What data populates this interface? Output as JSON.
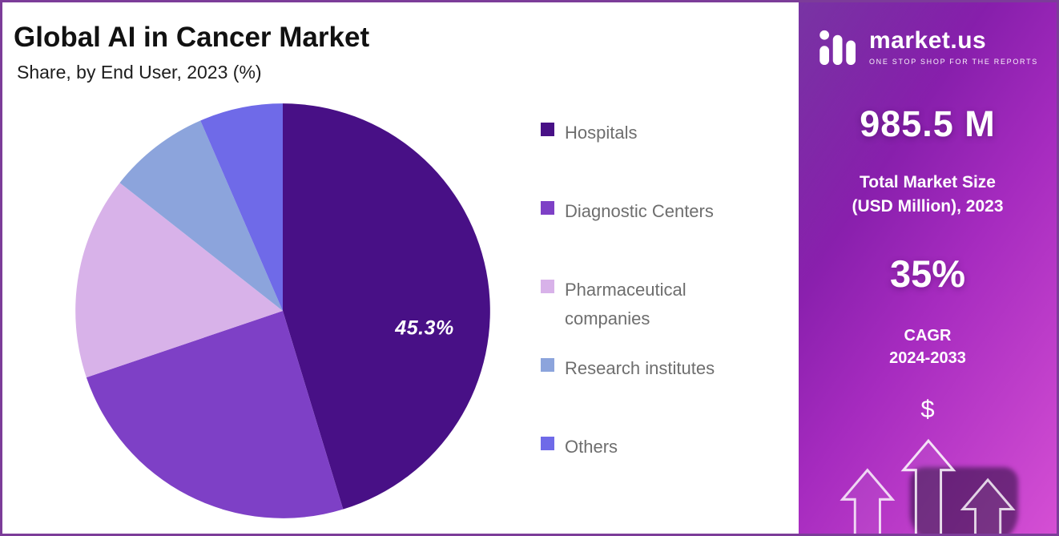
{
  "header": {
    "title": "Global AI in Cancer Market",
    "subtitle": "Share, by End User, 2023 (%)"
  },
  "chart_data": {
    "type": "pie",
    "title": "Global AI in Cancer Market Share, by End User, 2023 (%)",
    "categories": [
      "Hospitals",
      "Diagnostic Centers",
      "Pharmaceutical companies",
      "Research institutes",
      "Others"
    ],
    "values": [
      45.3,
      24.5,
      15.8,
      7.9,
      6.5
    ],
    "colors": [
      "#481086",
      "#7e40c6",
      "#d8b2e9",
      "#8ca4dc",
      "#6f6ae8"
    ],
    "start_angle_deg": 0,
    "direction": "clockwise",
    "legend_position": "right",
    "data_label": {
      "text": "45.3%",
      "slice": "Hospitals"
    }
  },
  "sidebar": {
    "brand": {
      "name": "market.us",
      "tagline": "ONE STOP SHOP FOR THE REPORTS",
      "logo": "marketus-wave-icon"
    },
    "market_size_value": "985.5 M",
    "market_size_label_line1": "Total Market Size",
    "market_size_label_line2": "(USD Million), 2023",
    "cagr_value": "35%",
    "cagr_label_line1": "CAGR",
    "cagr_label_line2": "2024-2033",
    "currency_symbol": "$",
    "accent_gradient": [
      "#600f93",
      "#a62bbf",
      "#d54fd4"
    ]
  }
}
